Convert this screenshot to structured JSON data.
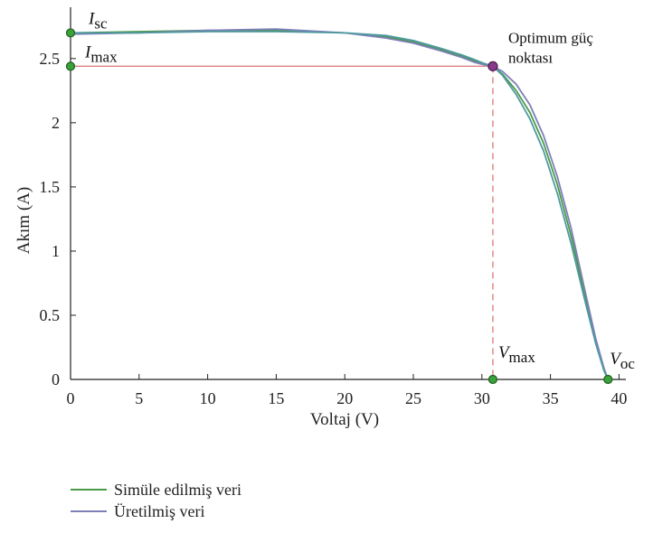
{
  "chart_data": {
    "type": "line",
    "title": "",
    "xlabel": "Voltaj (V)",
    "ylabel": "Akım (A)",
    "xlim": [
      0,
      40.5
    ],
    "ylim": [
      0,
      2.9
    ],
    "xticks": [
      0,
      5,
      10,
      15,
      20,
      25,
      30,
      35,
      40
    ],
    "yticks": [
      0,
      0.5,
      1,
      1.5,
      2,
      2.5
    ],
    "ytick_labels": [
      "0",
      "0.5",
      "1",
      "1.5",
      "2",
      "2.5"
    ],
    "grid": false,
    "legend_position": "bottom-left",
    "series": [
      {
        "name": "Simüle edilmiş veri",
        "color": "#4a9a4a",
        "x": [
          0,
          5,
          10,
          15,
          20,
          23,
          25,
          27,
          28.5,
          29.5,
          30.2,
          30.8,
          31.5,
          32.5,
          33.5,
          34.5,
          35.5,
          36.5,
          37.5,
          38.3,
          38.9,
          39.2
        ],
        "y": [
          2.7,
          2.71,
          2.72,
          2.72,
          2.7,
          2.67,
          2.63,
          2.57,
          2.52,
          2.48,
          2.46,
          2.44,
          2.38,
          2.25,
          2.08,
          1.84,
          1.52,
          1.12,
          0.66,
          0.3,
          0.08,
          0
        ]
      },
      {
        "name": "Üretilmiş veri",
        "color": "#7e7fb8",
        "x": [
          0,
          5,
          10,
          15,
          20,
          23,
          25,
          27,
          28.5,
          29.5,
          30.2,
          30.8,
          31.5,
          32.5,
          33.5,
          34.5,
          35.5,
          36.5,
          37.5,
          38.3,
          38.9,
          39.2
        ],
        "y": [
          2.69,
          2.7,
          2.72,
          2.73,
          2.7,
          2.66,
          2.62,
          2.56,
          2.51,
          2.47,
          2.45,
          2.44,
          2.4,
          2.3,
          2.14,
          1.9,
          1.58,
          1.18,
          0.7,
          0.32,
          0.09,
          0
        ]
      },
      {
        "name": "",
        "color": "#4f9aa0",
        "x": [
          0,
          5,
          10,
          15,
          20,
          23,
          25,
          27,
          28.5,
          29.5,
          30.2,
          30.8,
          31.5,
          32.5,
          33.5,
          34.5,
          35.5,
          36.5,
          37.5,
          38.3,
          38.9,
          39.2
        ],
        "y": [
          2.7,
          2.7,
          2.71,
          2.71,
          2.7,
          2.68,
          2.64,
          2.58,
          2.53,
          2.49,
          2.46,
          2.44,
          2.37,
          2.22,
          2.03,
          1.78,
          1.45,
          1.06,
          0.62,
          0.28,
          0.07,
          0
        ]
      }
    ],
    "optimum_point": {
      "x": 30.8,
      "y": 2.44
    },
    "reference_lines": {
      "i_max": 2.44,
      "v_max": 30.8
    },
    "markers": [
      {
        "x": 0,
        "y": 2.7
      },
      {
        "x": 0,
        "y": 2.44
      },
      {
        "x": 30.8,
        "y": 0
      },
      {
        "x": 39.2,
        "y": 0
      }
    ],
    "annotations": {
      "isc": {
        "main": "I",
        "sub": "sc"
      },
      "imax": {
        "main": "I",
        "sub": "max"
      },
      "vmax": {
        "main": "V",
        "sub": "max"
      },
      "voc": {
        "main": "V",
        "sub": "oc"
      },
      "optimum_line1": "Optimum güç",
      "optimum_line2": "noktası"
    },
    "colors": {
      "axis": "#222222",
      "reference": "#e08080",
      "marker_fill": "#3aa23a",
      "marker_stroke": "#1f5f1f",
      "optimum_fill": "#8a3a8a"
    }
  }
}
